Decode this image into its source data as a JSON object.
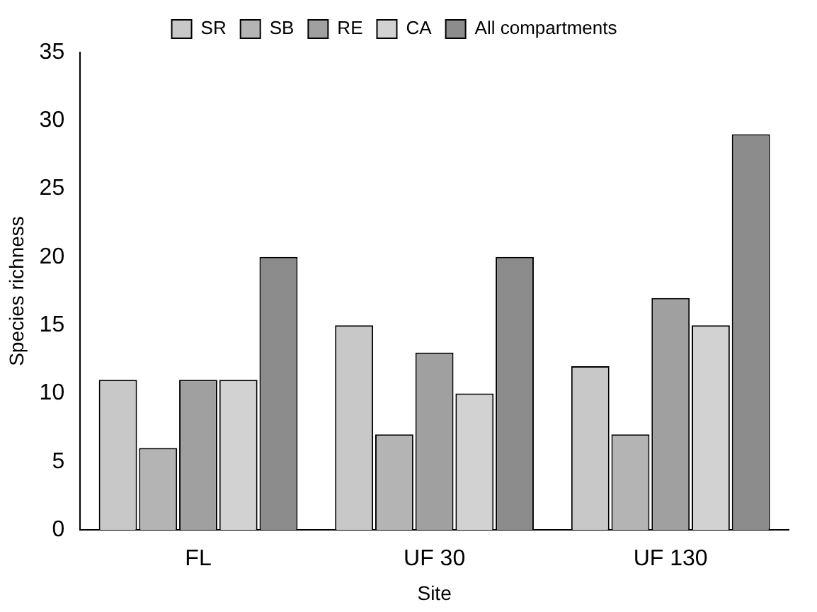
{
  "chart_data": {
    "type": "bar",
    "xlabel": "Site",
    "ylabel": "Species richness",
    "categories": [
      "FL",
      "UF 30",
      "UF 130"
    ],
    "series": [
      {
        "name": "SR",
        "color": "#c8c8c8",
        "values": [
          11,
          15,
          12
        ]
      },
      {
        "name": "SB",
        "color": "#b4b4b4",
        "values": [
          6,
          7,
          7
        ]
      },
      {
        "name": "RE",
        "color": "#a0a0a0",
        "values": [
          11,
          13,
          17
        ]
      },
      {
        "name": "CA",
        "color": "#d2d2d2",
        "values": [
          11,
          10,
          15
        ]
      },
      {
        "name": "All compartments",
        "color": "#8c8c8c",
        "values": [
          20,
          20,
          29
        ]
      }
    ],
    "ylim": [
      0,
      35
    ],
    "yticks": [
      0,
      5,
      10,
      15,
      20,
      25,
      30,
      35
    ],
    "grid": false,
    "legend": "top"
  }
}
